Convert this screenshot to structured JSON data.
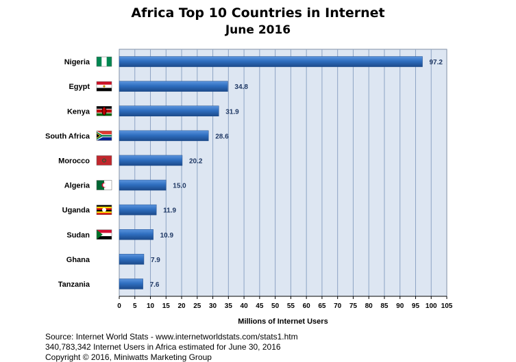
{
  "chart_data": {
    "type": "bar",
    "orientation": "horizontal",
    "title": "Africa Top 10 Countries in Internet",
    "subtitle": "June 2016",
    "xlabel": "Millions of Internet Users",
    "ylabel": "",
    "xlim": [
      0,
      105
    ],
    "xticks": [
      0,
      5,
      10,
      15,
      20,
      25,
      30,
      35,
      40,
      45,
      50,
      55,
      60,
      65,
      70,
      75,
      80,
      85,
      90,
      95,
      100,
      105
    ],
    "grid": true,
    "categories": [
      "Nigeria",
      "Egypt",
      "Kenya",
      "South Africa",
      "Morocco",
      "Algeria",
      "Uganda",
      "Sudan",
      "Ghana",
      "Tanzania"
    ],
    "values": [
      97.2,
      34.8,
      31.9,
      28.6,
      20.2,
      15.0,
      11.9,
      10.9,
      7.9,
      7.6
    ],
    "value_labels": [
      "97.2",
      "34.8",
      "31.9",
      "28.6",
      "20.2",
      "15.0",
      "11.9",
      "10.9",
      "7.9",
      "7.6"
    ],
    "flags": [
      {
        "country": "Nigeria",
        "icon": "nigeria-flag-icon"
      },
      {
        "country": "Egypt",
        "icon": "egypt-flag-icon"
      },
      {
        "country": "Kenya",
        "icon": "kenya-flag-icon"
      },
      {
        "country": "South Africa",
        "icon": "south-africa-flag-icon"
      },
      {
        "country": "Morocco",
        "icon": "morocco-flag-icon"
      },
      {
        "country": "Algeria",
        "icon": "algeria-flag-icon"
      },
      {
        "country": "Uganda",
        "icon": "uganda-flag-icon"
      },
      {
        "country": "Sudan",
        "icon": "sudan-flag-icon"
      },
      {
        "country": "Ghana",
        "icon": null
      },
      {
        "country": "Tanzania",
        "icon": null
      }
    ],
    "colors": {
      "bar": "#2f6fc0",
      "bar_light": "#5c95de",
      "bar_dark": "#1c4a8a",
      "plot_background": "#dde6f2",
      "grid": "#8ca3c4",
      "value_label": "#1f3864"
    }
  },
  "footer": {
    "source": "Source: Internet World Stats - www.internetworldstats.com/stats1.htm",
    "note": "340,783,342 Internet Users in Africa estimated for June 30, 2016",
    "copyright": "Copyright © 2016, Miniwatts Marketing Group"
  }
}
